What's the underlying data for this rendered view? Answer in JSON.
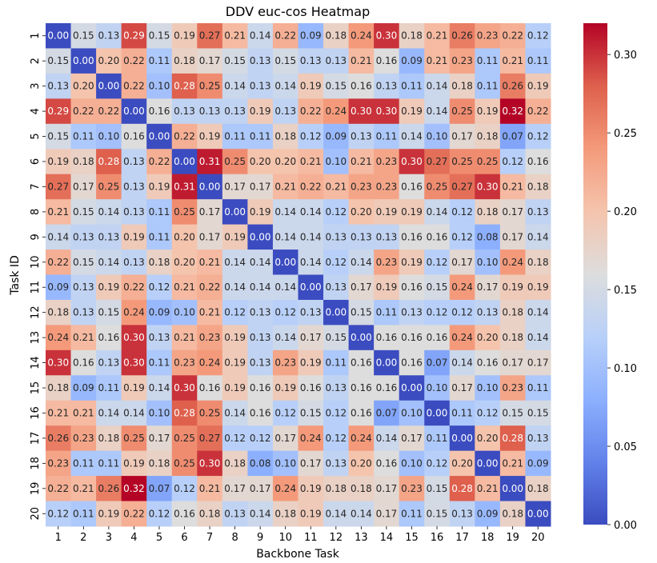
{
  "chart_data": {
    "type": "heatmap",
    "title": "DDV euc-cos Heatmap",
    "xlabel": "Backbone Task",
    "ylabel": "Task ID",
    "x_categories": [
      "1",
      "2",
      "3",
      "4",
      "5",
      "6",
      "7",
      "8",
      "9",
      "10",
      "11",
      "12",
      "13",
      "14",
      "15",
      "16",
      "17",
      "18",
      "19",
      "20"
    ],
    "y_categories": [
      "1",
      "2",
      "3",
      "4",
      "5",
      "6",
      "7",
      "8",
      "9",
      "10",
      "11",
      "12",
      "13",
      "14",
      "15",
      "16",
      "17",
      "18",
      "19",
      "20"
    ],
    "values": [
      [
        0.0,
        0.15,
        0.13,
        0.29,
        0.15,
        0.19,
        0.27,
        0.21,
        0.14,
        0.22,
        0.09,
        0.18,
        0.24,
        0.3,
        0.18,
        0.21,
        0.26,
        0.23,
        0.22,
        0.12
      ],
      [
        0.15,
        0.0,
        0.2,
        0.22,
        0.11,
        0.18,
        0.17,
        0.15,
        0.13,
        0.15,
        0.13,
        0.13,
        0.21,
        0.16,
        0.09,
        0.21,
        0.23,
        0.11,
        0.21,
        0.11
      ],
      [
        0.13,
        0.2,
        0.0,
        0.22,
        0.1,
        0.28,
        0.25,
        0.14,
        0.13,
        0.14,
        0.19,
        0.15,
        0.16,
        0.13,
        0.11,
        0.14,
        0.18,
        0.11,
        0.26,
        0.19
      ],
      [
        0.29,
        0.22,
        0.22,
        0.0,
        0.16,
        0.13,
        0.13,
        0.13,
        0.19,
        0.13,
        0.22,
        0.24,
        0.3,
        0.3,
        0.19,
        0.14,
        0.25,
        0.19,
        0.32,
        0.22
      ],
      [
        0.15,
        0.11,
        0.1,
        0.16,
        0.0,
        0.22,
        0.19,
        0.11,
        0.11,
        0.18,
        0.12,
        0.09,
        0.13,
        0.11,
        0.14,
        0.1,
        0.17,
        0.18,
        0.07,
        0.12
      ],
      [
        0.19,
        0.18,
        0.28,
        0.13,
        0.22,
        0.0,
        0.31,
        0.25,
        0.2,
        0.2,
        0.21,
        0.1,
        0.21,
        0.23,
        0.3,
        0.27,
        0.25,
        0.25,
        0.12,
        0.16
      ],
      [
        0.27,
        0.17,
        0.25,
        0.13,
        0.19,
        0.31,
        0.0,
        0.17,
        0.17,
        0.21,
        0.22,
        0.21,
        0.23,
        0.23,
        0.16,
        0.25,
        0.27,
        0.3,
        0.21,
        0.18
      ],
      [
        0.21,
        0.15,
        0.14,
        0.13,
        0.11,
        0.25,
        0.17,
        0.0,
        0.19,
        0.14,
        0.14,
        0.12,
        0.2,
        0.19,
        0.19,
        0.14,
        0.12,
        0.18,
        0.17,
        0.13
      ],
      [
        0.14,
        0.13,
        0.13,
        0.19,
        0.11,
        0.2,
        0.17,
        0.19,
        0.0,
        0.14,
        0.14,
        0.13,
        0.13,
        0.13,
        0.16,
        0.16,
        0.12,
        0.08,
        0.17,
        0.14
      ],
      [
        0.22,
        0.15,
        0.14,
        0.13,
        0.18,
        0.2,
        0.21,
        0.14,
        0.14,
        0.0,
        0.14,
        0.12,
        0.14,
        0.23,
        0.19,
        0.12,
        0.17,
        0.1,
        0.24,
        0.18
      ],
      [
        0.09,
        0.13,
        0.19,
        0.22,
        0.12,
        0.21,
        0.22,
        0.14,
        0.14,
        0.14,
        0.0,
        0.13,
        0.17,
        0.19,
        0.16,
        0.15,
        0.24,
        0.17,
        0.19,
        0.19
      ],
      [
        0.18,
        0.13,
        0.15,
        0.24,
        0.09,
        0.1,
        0.21,
        0.12,
        0.13,
        0.12,
        0.13,
        0.0,
        0.15,
        0.11,
        0.13,
        0.12,
        0.12,
        0.13,
        0.18,
        0.14
      ],
      [
        0.24,
        0.21,
        0.16,
        0.3,
        0.13,
        0.21,
        0.23,
        0.19,
        0.13,
        0.14,
        0.17,
        0.15,
        0.0,
        0.16,
        0.16,
        0.16,
        0.24,
        0.2,
        0.18,
        0.14
      ],
      [
        0.3,
        0.16,
        0.13,
        0.3,
        0.11,
        0.23,
        0.24,
        0.19,
        0.13,
        0.23,
        0.19,
        0.11,
        0.16,
        0.0,
        0.16,
        0.07,
        0.14,
        0.16,
        0.17,
        0.17
      ],
      [
        0.18,
        0.09,
        0.11,
        0.19,
        0.14,
        0.3,
        0.16,
        0.19,
        0.16,
        0.19,
        0.16,
        0.13,
        0.16,
        0.16,
        0.0,
        0.1,
        0.17,
        0.1,
        0.23,
        0.11
      ],
      [
        0.21,
        0.21,
        0.14,
        0.14,
        0.1,
        0.28,
        0.25,
        0.14,
        0.16,
        0.12,
        0.15,
        0.12,
        0.16,
        0.07,
        0.1,
        0.0,
        0.11,
        0.12,
        0.15,
        0.15
      ],
      [
        0.26,
        0.23,
        0.18,
        0.25,
        0.17,
        0.25,
        0.27,
        0.12,
        0.12,
        0.17,
        0.24,
        0.12,
        0.24,
        0.14,
        0.17,
        0.11,
        0.0,
        0.2,
        0.28,
        0.13
      ],
      [
        0.23,
        0.11,
        0.11,
        0.19,
        0.18,
        0.25,
        0.3,
        0.18,
        0.08,
        0.1,
        0.17,
        0.13,
        0.2,
        0.16,
        0.1,
        0.12,
        0.2,
        0.0,
        0.21,
        0.09
      ],
      [
        0.22,
        0.21,
        0.26,
        0.32,
        0.07,
        0.12,
        0.21,
        0.17,
        0.17,
        0.24,
        0.19,
        0.18,
        0.18,
        0.17,
        0.23,
        0.15,
        0.28,
        0.21,
        0.0,
        0.18
      ],
      [
        0.12,
        0.11,
        0.19,
        0.22,
        0.12,
        0.16,
        0.18,
        0.13,
        0.14,
        0.18,
        0.19,
        0.14,
        0.14,
        0.17,
        0.11,
        0.15,
        0.13,
        0.09,
        0.18,
        0.0
      ]
    ],
    "colormap": "coolwarm",
    "vmin": 0.0,
    "vmax": 0.32,
    "colorbar_ticks": [
      "0.00",
      "0.05",
      "0.10",
      "0.15",
      "0.20",
      "0.25",
      "0.30"
    ],
    "value_format": "2 decimals",
    "grid": false,
    "legend": "colorbar-right"
  }
}
